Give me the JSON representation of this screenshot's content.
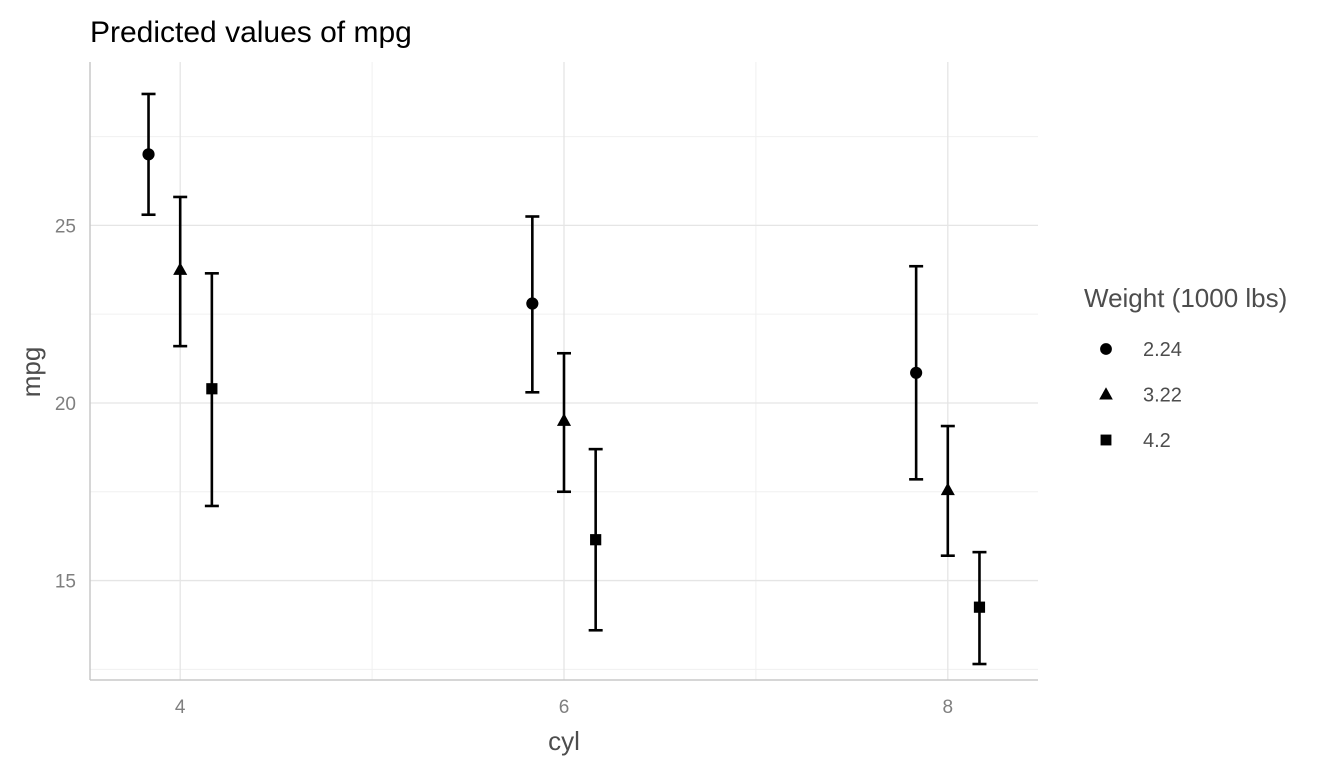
{
  "chart_data": {
    "type": "scatter",
    "title": "Predicted values of mpg",
    "xlabel": "cyl",
    "ylabel": "mpg",
    "x_ticks": [
      4,
      6,
      8
    ],
    "y_ticks": [
      15,
      20,
      25
    ],
    "xlim": [
      3.53,
      8.47
    ],
    "ylim": [
      12.2,
      29.6
    ],
    "grid": true,
    "legend_title": "Weight (1000 lbs)",
    "legend_position": "right",
    "dodge": 0.165,
    "series": [
      {
        "name": "2.24",
        "shape": "circle",
        "x": [
          4,
          6,
          8
        ],
        "values": [
          27.0,
          22.8,
          20.85
        ],
        "lower": [
          25.3,
          20.3,
          17.85
        ],
        "upper": [
          28.7,
          25.25,
          23.85
        ]
      },
      {
        "name": "3.22",
        "shape": "triangle",
        "x": [
          4,
          6,
          8
        ],
        "values": [
          23.75,
          19.5,
          17.55
        ],
        "lower": [
          21.6,
          17.5,
          15.7
        ],
        "upper": [
          25.8,
          21.4,
          19.35
        ]
      },
      {
        "name": "4.2",
        "shape": "square",
        "x": [
          4,
          6,
          8
        ],
        "values": [
          20.4,
          16.15,
          14.25
        ],
        "lower": [
          17.1,
          13.6,
          12.65
        ],
        "upper": [
          23.65,
          18.7,
          15.8
        ]
      }
    ]
  }
}
